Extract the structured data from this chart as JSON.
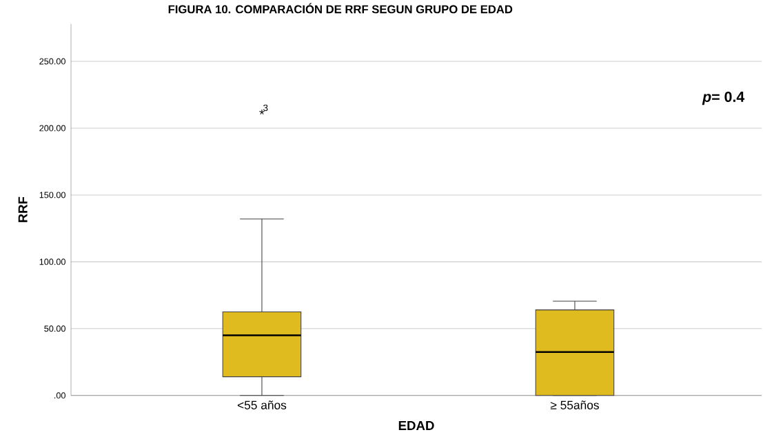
{
  "chart_data": {
    "type": "box",
    "title": "FIGURA 10.  COMPARACIÓN DE RRF SEGUN GRUPO DE EDAD",
    "xlabel": "EDAD",
    "ylabel": "RRF",
    "categories": [
      "<55 años",
      "≥ 55años"
    ],
    "boxes": [
      {
        "low": 0,
        "q1": 14,
        "median": 45,
        "q3": 62.5,
        "high": 132,
        "outliers": [
          212
        ]
      },
      {
        "low": 0,
        "q1": 0,
        "median": 32.5,
        "q3": 64,
        "high": 70.5
      }
    ],
    "color": "#e0bb20",
    "ylim": [
      0,
      278
    ],
    "yticks": [
      {
        "value": 0,
        "label": ".00"
      },
      {
        "value": 50,
        "label": "50.00"
      },
      {
        "value": 100,
        "label": "100.00"
      },
      {
        "value": 150,
        "label": "150.00"
      },
      {
        "value": 200,
        "label": "200.00"
      },
      {
        "value": 250,
        "label": "250.00"
      }
    ],
    "grid": "y",
    "marker": "star",
    "annotations": [
      "3",
      "*p*= 0.4"
    ]
  }
}
